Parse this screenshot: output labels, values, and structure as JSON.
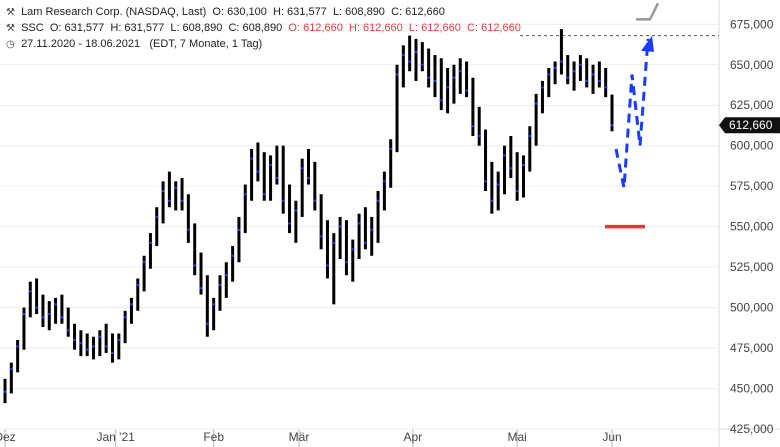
{
  "legend": {
    "main": {
      "name": "Lam Research Corp. (NASDAQ, Last)",
      "open": "O: 630,100",
      "high": "H: 631,577",
      "low": "L: 608,890",
      "close": "C: 612,660"
    },
    "ssc": {
      "name": "SSC",
      "open": "O: 631,577",
      "high": "H: 631,577",
      "low": "L: 608,890",
      "close": "C: 608,890",
      "open2": "O: 612,660",
      "high2": "H: 612,660",
      "low2": "L: 612,660",
      "close2": "C: 612,660"
    },
    "range": {
      "dates": "27.11.2020 - 18.06.2021",
      "info": "(EDT, 7 Monate, 1 Tag)"
    }
  },
  "chart_data": {
    "type": "ohlc",
    "ylim": [
      425000,
      690000
    ],
    "y_ticks": [
      "425,000",
      "450,000",
      "475,000",
      "500,000",
      "525,000",
      "550,000",
      "575,000",
      "600,000",
      "625,000",
      "650,000",
      "675,000"
    ],
    "x_ticks": [
      "Dez",
      "Jan '21",
      "Feb",
      "Mär",
      "Apr",
      "Mai",
      "Jun"
    ],
    "current_price_label": "612,660",
    "current_price": 612660,
    "reference_level": 668000,
    "colors": {
      "bar": "#000000",
      "accent": "#1a3cff",
      "price_tag": "#111111",
      "projection": "#1a3cff",
      "support": "#e53935",
      "resistance": "#999999"
    },
    "candles": [
      [
        442000,
        456000,
        441000,
        448000
      ],
      [
        448000,
        466000,
        447000,
        462000
      ],
      [
        462000,
        480000,
        460000,
        476000
      ],
      [
        476000,
        500000,
        474000,
        496000
      ],
      [
        496000,
        516000,
        494000,
        510000
      ],
      [
        510000,
        518000,
        496000,
        500000
      ],
      [
        500000,
        508000,
        488000,
        494000
      ],
      [
        494000,
        504000,
        486000,
        496000
      ],
      [
        496000,
        506000,
        490000,
        502000
      ],
      [
        502000,
        508000,
        490000,
        494000
      ],
      [
        494000,
        500000,
        482000,
        486000
      ],
      [
        486000,
        490000,
        474000,
        480000
      ],
      [
        480000,
        486000,
        470000,
        478000
      ],
      [
        478000,
        484000,
        470000,
        474000
      ],
      [
        474000,
        482000,
        468000,
        476000
      ],
      [
        476000,
        486000,
        470000,
        482000
      ],
      [
        482000,
        490000,
        472000,
        476000
      ],
      [
        476000,
        484000,
        466000,
        472000
      ],
      [
        472000,
        484000,
        468000,
        480000
      ],
      [
        480000,
        498000,
        478000,
        494000
      ],
      [
        494000,
        506000,
        490000,
        502000
      ],
      [
        502000,
        518000,
        498000,
        514000
      ],
      [
        514000,
        532000,
        510000,
        528000
      ],
      [
        528000,
        546000,
        524000,
        540000
      ],
      [
        540000,
        562000,
        538000,
        556000
      ],
      [
        556000,
        578000,
        552000,
        572000
      ],
      [
        572000,
        584000,
        562000,
        566000
      ],
      [
        566000,
        578000,
        560000,
        574000
      ],
      [
        574000,
        580000,
        560000,
        566000
      ],
      [
        566000,
        570000,
        540000,
        548000
      ],
      [
        548000,
        552000,
        520000,
        526000
      ],
      [
        526000,
        534000,
        508000,
        512000
      ],
      [
        512000,
        520000,
        482000,
        490000
      ],
      [
        490000,
        506000,
        486000,
        502000
      ],
      [
        502000,
        520000,
        498000,
        514000
      ],
      [
        514000,
        528000,
        506000,
        520000
      ],
      [
        520000,
        538000,
        516000,
        532000
      ],
      [
        532000,
        556000,
        528000,
        548000
      ],
      [
        548000,
        576000,
        546000,
        570000
      ],
      [
        570000,
        598000,
        566000,
        592000
      ],
      [
        592000,
        602000,
        578000,
        584000
      ],
      [
        584000,
        596000,
        566000,
        570000
      ],
      [
        570000,
        594000,
        566000,
        588000
      ],
      [
        588000,
        600000,
        576000,
        580000
      ],
      [
        580000,
        600000,
        558000,
        566000
      ],
      [
        566000,
        576000,
        546000,
        552000
      ],
      [
        552000,
        566000,
        540000,
        560000
      ],
      [
        560000,
        592000,
        556000,
        586000
      ],
      [
        586000,
        598000,
        576000,
        580000
      ],
      [
        580000,
        590000,
        560000,
        566000
      ],
      [
        566000,
        570000,
        536000,
        544000
      ],
      [
        544000,
        554000,
        518000,
        526000
      ],
      [
        526000,
        546000,
        502000,
        540000
      ],
      [
        540000,
        556000,
        530000,
        550000
      ],
      [
        550000,
        554000,
        520000,
        528000
      ],
      [
        528000,
        542000,
        516000,
        536000
      ],
      [
        536000,
        558000,
        530000,
        552000
      ],
      [
        552000,
        562000,
        536000,
        540000
      ],
      [
        540000,
        556000,
        532000,
        548000
      ],
      [
        548000,
        572000,
        540000,
        566000
      ],
      [
        566000,
        584000,
        560000,
        578000
      ],
      [
        578000,
        604000,
        574000,
        598000
      ],
      [
        598000,
        650000,
        596000,
        644000
      ],
      [
        644000,
        662000,
        636000,
        656000
      ],
      [
        656000,
        668000,
        646000,
        652000
      ],
      [
        652000,
        666000,
        640000,
        658000
      ],
      [
        658000,
        664000,
        646000,
        650000
      ],
      [
        650000,
        660000,
        636000,
        642000
      ],
      [
        642000,
        656000,
        630000,
        640000
      ],
      [
        640000,
        654000,
        622000,
        628000
      ],
      [
        628000,
        648000,
        620000,
        636000
      ],
      [
        636000,
        650000,
        626000,
        642000
      ],
      [
        642000,
        654000,
        632000,
        646000
      ],
      [
        646000,
        652000,
        630000,
        634000
      ],
      [
        634000,
        642000,
        606000,
        612000
      ],
      [
        612000,
        624000,
        600000,
        606000
      ],
      [
        606000,
        610000,
        572000,
        578000
      ],
      [
        578000,
        590000,
        558000,
        566000
      ],
      [
        566000,
        584000,
        560000,
        576000
      ],
      [
        576000,
        600000,
        570000,
        594000
      ],
      [
        594000,
        606000,
        580000,
        586000
      ],
      [
        586000,
        596000,
        566000,
        572000
      ],
      [
        572000,
        594000,
        568000,
        588000
      ],
      [
        588000,
        612000,
        584000,
        606000
      ],
      [
        606000,
        632000,
        600000,
        626000
      ],
      [
        626000,
        640000,
        620000,
        636000
      ],
      [
        636000,
        648000,
        630000,
        644000
      ],
      [
        644000,
        652000,
        638000,
        648000
      ],
      [
        648000,
        672000,
        644000,
        652000
      ],
      [
        652000,
        656000,
        638000,
        642000
      ],
      [
        642000,
        652000,
        634000,
        646000
      ],
      [
        646000,
        656000,
        640000,
        650000
      ],
      [
        650000,
        654000,
        636000,
        640000
      ],
      [
        640000,
        650000,
        632000,
        644000
      ],
      [
        644000,
        652000,
        636000,
        640000
      ],
      [
        640000,
        648000,
        630000,
        636000
      ],
      [
        630100,
        631577,
        608890,
        612660
      ]
    ],
    "projection": [
      [
        616000,
        598000
      ],
      [
        624000,
        574000
      ],
      [
        632000,
        644000
      ],
      [
        640000,
        600000
      ],
      [
        648000,
        666000
      ]
    ],
    "support_level": 550000,
    "grey_marks": [
      [
        634000,
        678000
      ],
      [
        654000,
        688000
      ]
    ]
  }
}
